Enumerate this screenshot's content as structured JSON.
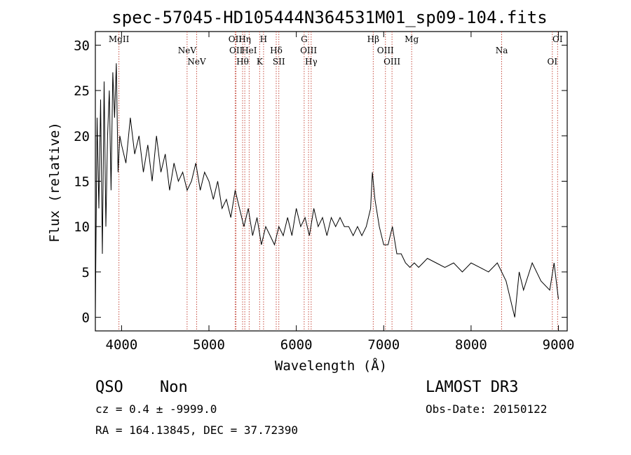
{
  "chart_data": {
    "type": "line",
    "title": "spec-57045-HD105444N364531M01_sp09-104.fits",
    "xlabel": "Wavelength (Å)",
    "ylabel": "Flux (relative)",
    "xlim": [
      3700,
      9100
    ],
    "ylim": [
      -1.5,
      31.5
    ],
    "xticks": [
      4000,
      5000,
      6000,
      7000,
      8000,
      9000
    ],
    "yticks": [
      0,
      5,
      10,
      15,
      20,
      25,
      30
    ],
    "series": [
      {
        "name": "flux",
        "x": [
          3700,
          3720,
          3740,
          3760,
          3780,
          3800,
          3820,
          3840,
          3860,
          3880,
          3900,
          3920,
          3940,
          3960,
          3980,
          4000,
          4050,
          4100,
          4150,
          4200,
          4250,
          4300,
          4350,
          4400,
          4450,
          4500,
          4550,
          4600,
          4650,
          4700,
          4750,
          4800,
          4850,
          4900,
          4950,
          5000,
          5050,
          5100,
          5150,
          5200,
          5250,
          5300,
          5350,
          5400,
          5450,
          5500,
          5550,
          5600,
          5650,
          5700,
          5750,
          5800,
          5850,
          5900,
          5950,
          6000,
          6050,
          6100,
          6150,
          6200,
          6250,
          6300,
          6350,
          6400,
          6450,
          6500,
          6550,
          6600,
          6650,
          6700,
          6750,
          6800,
          6850,
          6870,
          6900,
          6950,
          7000,
          7050,
          7100,
          7150,
          7200,
          7250,
          7300,
          7350,
          7400,
          7450,
          7500,
          7600,
          7700,
          7800,
          7900,
          8000,
          8100,
          8200,
          8300,
          8400,
          8450,
          8500,
          8550,
          8600,
          8700,
          8800,
          8900,
          8950,
          9000
        ],
        "values": [
          0.5,
          22,
          12,
          24,
          7,
          26,
          10,
          20,
          25,
          14,
          27,
          22,
          28,
          16,
          20,
          19,
          17,
          22,
          18,
          20,
          16,
          19,
          15,
          20,
          16,
          18,
          14,
          17,
          15,
          16,
          14,
          15,
          17,
          14,
          16,
          15,
          13,
          15,
          12,
          13,
          11,
          14,
          12,
          10,
          12,
          9,
          11,
          8,
          10,
          9,
          8,
          10,
          9,
          11,
          9,
          12,
          10,
          11,
          9,
          12,
          10,
          11,
          9,
          11,
          10,
          11,
          10,
          10,
          9,
          10,
          9,
          10,
          12,
          16,
          13,
          10,
          8,
          8,
          10,
          7,
          7,
          6,
          5.5,
          6,
          5.5,
          6,
          6.5,
          6,
          5.5,
          6,
          5,
          6,
          5.5,
          5,
          6,
          4,
          2,
          0,
          5,
          3,
          6,
          4,
          3,
          6,
          2
        ]
      }
    ],
    "emission_lines": [
      {
        "name": "MgII",
        "wavelength": 3970
      },
      {
        "name": "NeV",
        "wavelength": 4750
      },
      {
        "name": "NeV",
        "wavelength": 4860
      },
      {
        "name": "OII",
        "wavelength": 5300
      },
      {
        "name": "OII",
        "wavelength": 5310
      },
      {
        "name": "Hθ",
        "wavelength": 5385
      },
      {
        "name": "Hη",
        "wavelength": 5410
      },
      {
        "name": "HeI",
        "wavelength": 5460
      },
      {
        "name": "K",
        "wavelength": 5580
      },
      {
        "name": "H",
        "wavelength": 5625
      },
      {
        "name": "Hδ",
        "wavelength": 5770
      },
      {
        "name": "SII",
        "wavelength": 5800
      },
      {
        "name": "G",
        "wavelength": 6090
      },
      {
        "name": "OIII",
        "wavelength": 6140
      },
      {
        "name": "Hγ",
        "wavelength": 6170
      },
      {
        "name": "Hβ",
        "wavelength": 6880
      },
      {
        "name": "OIII",
        "wavelength": 7020
      },
      {
        "name": "OIII",
        "wavelength": 7095
      },
      {
        "name": "Mg",
        "wavelength": 7320
      },
      {
        "name": "Na",
        "wavelength": 8350
      },
      {
        "name": "OI",
        "wavelength": 8930
      },
      {
        "name": "OI",
        "wavelength": 8990
      }
    ]
  },
  "info": {
    "class": "QSO",
    "subclass": "Non",
    "survey": "LAMOST DR3",
    "cz": "cz = 0.4 ± -9999.0",
    "obs_date": "Obs-Date: 20150122",
    "coords": "RA = 164.13845, DEC =  37.72390"
  }
}
